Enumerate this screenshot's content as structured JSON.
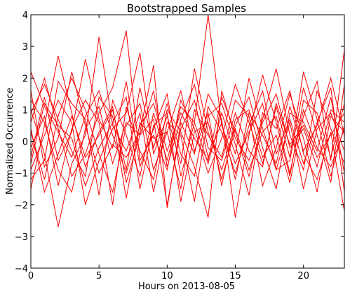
{
  "chart_data": {
    "type": "line",
    "title": "Bootstrapped Samples",
    "xlabel": "Hours on 2013-08-05",
    "ylabel": "Normalized Occurrence",
    "xlim": [
      0,
      23
    ],
    "ylim": [
      -4,
      4
    ],
    "x_ticks": [
      "0",
      "5",
      "10",
      "15",
      "20"
    ],
    "y_ticks": [
      "−4",
      "−3",
      "−2",
      "−1",
      "0",
      "1",
      "2",
      "3",
      "4"
    ],
    "x_tick_values": [
      0,
      5,
      10,
      15,
      20
    ],
    "y_tick_values": [
      -4,
      -3,
      -2,
      -1,
      0,
      1,
      2,
      3,
      4
    ],
    "grid": false,
    "line_color": "#ff0000",
    "x": [
      0,
      1,
      2,
      3,
      4,
      5,
      6,
      7,
      8,
      9,
      10,
      11,
      12,
      13,
      14,
      15,
      16,
      17,
      18,
      19,
      20,
      21,
      22,
      23
    ],
    "series": [
      {
        "values": [
          2.2,
          1.1,
          0.3,
          -0.5,
          0.8,
          1.6,
          0.2,
          -1.0,
          0.5,
          1.2,
          -0.3,
          0.9,
          0.1,
          -0.6,
          1.4,
          0.3,
          -1.1,
          0.6,
          1.5,
          -0.2,
          0.4,
          -0.8,
          1.0,
          0.6
        ]
      },
      {
        "values": [
          -1.5,
          0.5,
          2.7,
          0.9,
          -0.8,
          0.3,
          1.1,
          -1.3,
          0.2,
          0.7,
          -2.0,
          0.4,
          1.3,
          -0.5,
          0.6,
          -1.2,
          0.9,
          0.2,
          -0.7,
          1.1,
          -0.3,
          0.5,
          2.0,
          0.2
        ]
      },
      {
        "values": [
          0.3,
          -1.2,
          0.8,
          2.0,
          1.0,
          -0.4,
          -1.6,
          0.5,
          1.2,
          -0.9,
          0.3,
          1.6,
          -0.3,
          0.9,
          -1.4,
          0.7,
          1.0,
          -0.5,
          0.2,
          -1.3,
          0.8,
          1.9,
          -0.6,
          2.9
        ]
      },
      {
        "values": [
          -0.5,
          1.4,
          -0.6,
          0.3,
          2.6,
          0.7,
          -0.2,
          1.9,
          -0.8,
          0.4,
          1.5,
          -1.1,
          0.6,
          4.1,
          0.5,
          -0.7,
          0.3,
          1.2,
          -0.9,
          0.6,
          -1.5,
          0.4,
          0.9,
          -0.3
        ]
      },
      {
        "values": [
          1.0,
          -0.4,
          -2.7,
          -0.7,
          0.2,
          3.3,
          0.5,
          -0.3,
          0.9,
          -1.6,
          0.6,
          0.2,
          -1.9,
          0.8,
          1.2,
          -0.1,
          -1.7,
          0.9,
          0.4,
          1.6,
          -0.4,
          -1.2,
          0.3,
          -2.2
        ]
      },
      {
        "values": [
          0.6,
          2.0,
          0.4,
          -1.1,
          -0.4,
          0.9,
          1.7,
          3.5,
          -0.6,
          0.2,
          -0.9,
          1.3,
          0.4,
          -1.0,
          0.1,
          1.8,
          0.6,
          -0.7,
          1.1,
          -0.5,
          2.2,
          0.7,
          -1.1,
          0.5
        ]
      },
      {
        "values": [
          -0.9,
          0.2,
          1.3,
          0.6,
          -2.0,
          -0.6,
          0.4,
          0.9,
          2.8,
          -0.4,
          0.8,
          -0.7,
          2.3,
          0.3,
          -0.9,
          0.5,
          1.4,
          -0.2,
          -1.5,
          0.9,
          0.6,
          -0.3,
          1.4,
          -1.0
        ]
      },
      {
        "values": [
          1.6,
          -0.8,
          0.1,
          2.2,
          0.5,
          -1.0,
          -0.1,
          -0.5,
          0.3,
          2.4,
          -2.1,
          0.6,
          -0.4,
          1.5,
          0.7,
          -2.4,
          0.2,
          2.1,
          0.6,
          -1.1,
          1.3,
          0.9,
          -0.5,
          1.2
        ]
      },
      {
        "values": [
          -0.2,
          0.8,
          -1.4,
          0.4,
          1.3,
          0.6,
          -2.0,
          1.1,
          -0.3,
          -1.2,
          1.0,
          0.3,
          -0.8,
          -2.4,
          1.6,
          0.1,
          -0.6,
          0.7,
          2.3,
          0.2,
          -0.9,
          1.6,
          0.4,
          -0.7
        ]
      },
      {
        "values": [
          0.9,
          1.8,
          0.7,
          -0.3,
          -1.1,
          1.4,
          0.8,
          -1.8,
          0.6,
          0.1,
          0.3,
          -1.5,
          1.0,
          0.2,
          -0.5,
          1.3,
          0.8,
          -1.4,
          -0.2,
          1.5,
          0.1,
          -1.6,
          0.8,
          0.3
        ]
      },
      {
        "values": [
          -1.2,
          -0.6,
          1.9,
          1.2,
          0.7,
          -1.7,
          1.3,
          0.2,
          -1.1,
          0.9,
          -0.6,
          1.1,
          0.6,
          -0.7,
          0.9,
          -0.4,
          2.0,
          0.4,
          -0.9,
          -0.6,
          1.7,
          0.2,
          -1.3,
          1.8
        ]
      },
      {
        "values": [
          0.4,
          -1.6,
          -0.4,
          0.8,
          -0.5,
          0.2,
          1.0,
          -0.9,
          1.7,
          -0.2,
          1.2,
          -0.4,
          -1.1,
          1.1,
          0.3,
          -1.0,
          0.5,
          1.6,
          -0.4,
          0.7,
          -0.7,
          0.6,
          1.7,
          -1.6
        ]
      },
      {
        "values": [
          1.3,
          0.6,
          -0.9,
          -1.6,
          0.4,
          1.1,
          -0.7,
          0.6,
          0.2,
          1.6,
          -0.8,
          0.7,
          1.8,
          -0.2,
          -0.6,
          0.9,
          -0.3,
          -0.8,
          1.2,
          -0.1,
          0.5,
          -0.5,
          0.2,
          0.9
        ]
      },
      {
        "values": [
          -0.7,
          1.2,
          0.5,
          0.1,
          -1.4,
          -0.2,
          0.6,
          1.4,
          -1.5,
          0.5,
          0.9,
          -1.9,
          0.3,
          0.6,
          -1.2,
          0.4,
          -0.9,
          0.3,
          0.8,
          -1.0,
          1.0,
          -0.2,
          -0.8,
          0.4
        ]
      }
    ]
  }
}
